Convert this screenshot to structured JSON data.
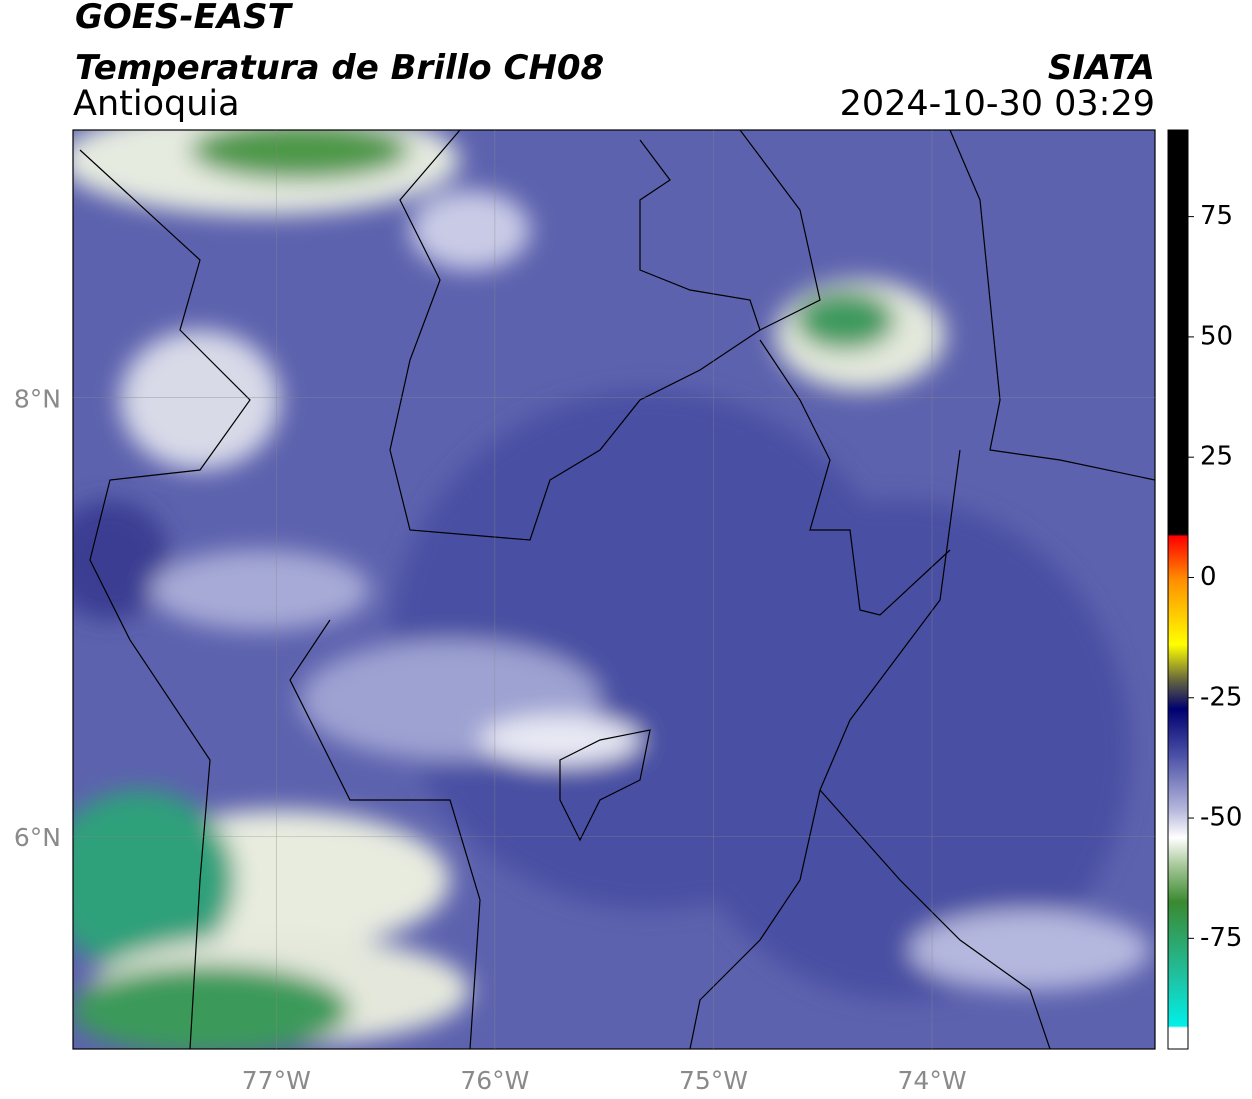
{
  "header": {
    "title": "GOES-EAST",
    "subtitle": "Temperatura de Brillo CH08",
    "region": "Antioquia",
    "source": "SIATA",
    "datetime": "2024-10-30 03:29"
  },
  "map": {
    "lonlim": [
      -77.93,
      -72.98
    ],
    "latlim": [
      5.03,
      9.22
    ],
    "lon_ticks": [
      {
        "value": -77,
        "label": "77°W"
      },
      {
        "value": -76,
        "label": "76°W"
      },
      {
        "value": -75,
        "label": "75°W"
      },
      {
        "value": -74,
        "label": "74°W"
      }
    ],
    "lat_ticks": [
      {
        "value": 8,
        "label": "8°N"
      },
      {
        "value": 6,
        "label": "6°N"
      }
    ]
  },
  "colorbar": {
    "lim": [
      -98,
      93
    ],
    "ticks": [
      75,
      50,
      25,
      0,
      -25,
      -50,
      -75
    ]
  }
}
